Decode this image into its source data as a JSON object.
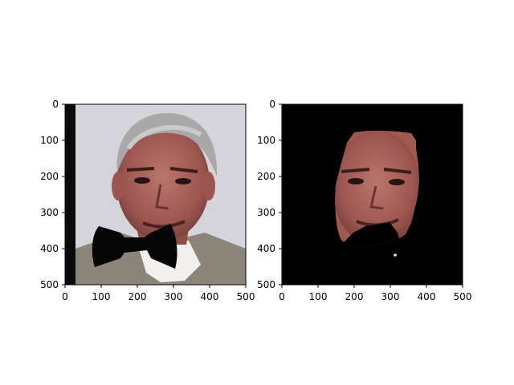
{
  "figure": {
    "background": "#ffffff",
    "axis_color": "#000000"
  },
  "chart_data": [
    {
      "type": "image",
      "name": "original-with-bowtie",
      "xlim": [
        0,
        500
      ],
      "ylim": [
        500,
        0
      ],
      "xticks": [
        0,
        100,
        200,
        300,
        400,
        500
      ],
      "yticks": [
        0,
        100,
        200,
        300,
        400,
        500
      ],
      "title": "",
      "xlabel": "",
      "ylabel": "",
      "content": "portrait photo of a man with a black bow-tie mask drawn over the chin area; dark vertical strip at left edge",
      "colors": {
        "background": "#d6d4db",
        "jacket": "#8b8579",
        "skin": "#a8625a",
        "hair": "#a8a8a8",
        "mask": "#050505"
      }
    },
    {
      "type": "image",
      "name": "segmented-face",
      "xlim": [
        0,
        500
      ],
      "ylim": [
        500,
        0
      ],
      "xticks": [
        0,
        100,
        200,
        300,
        400,
        500
      ],
      "yticks": [
        0,
        100,
        200,
        300,
        400,
        500
      ],
      "title": "",
      "xlabel": "",
      "ylabel": "",
      "content": "face region only on black background, bow-tie mask area also black",
      "colors": {
        "background": "#000000",
        "skin": "#a8625a"
      }
    }
  ]
}
